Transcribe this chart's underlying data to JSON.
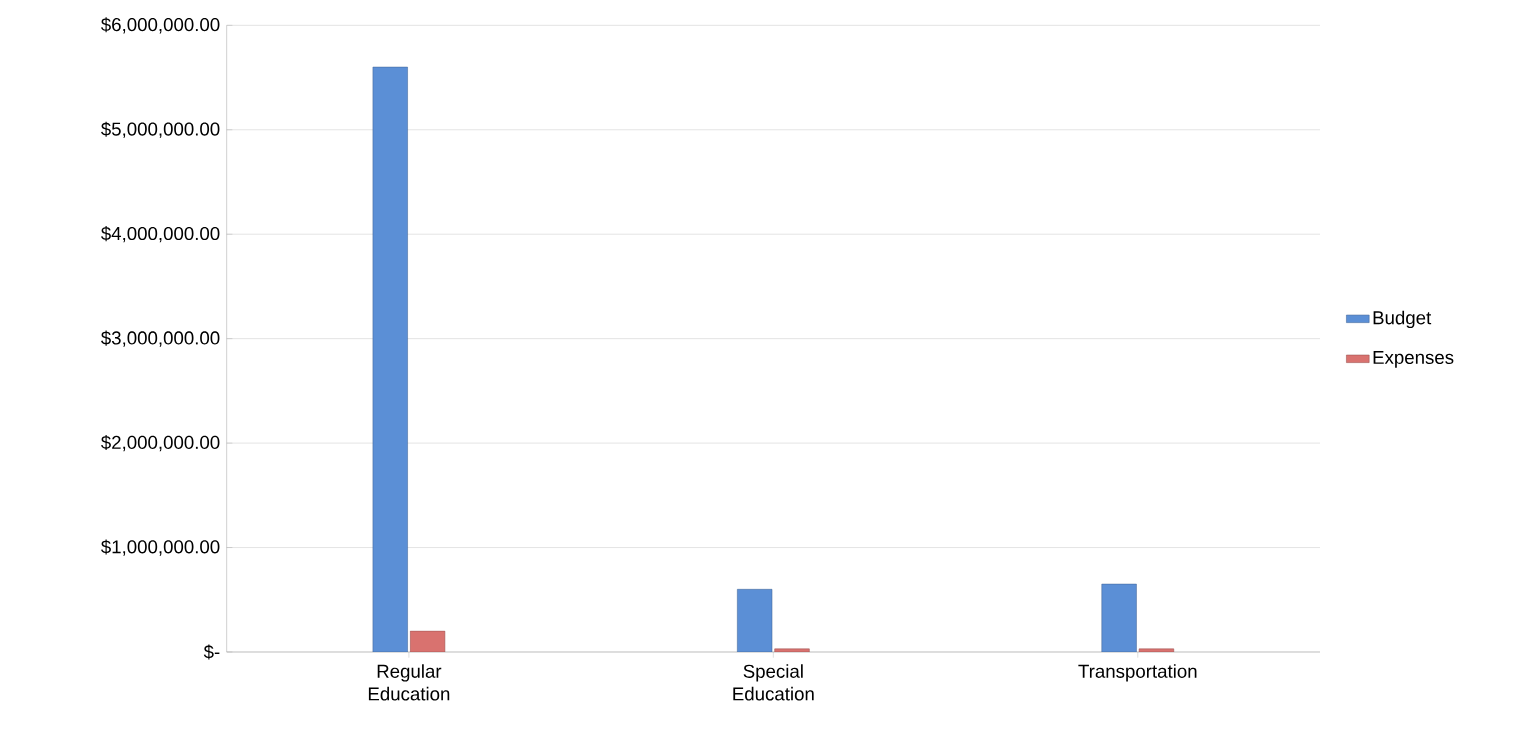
{
  "chart_data": {
    "type": "bar",
    "categories": [
      "Regular Education",
      "Special Education",
      "Transportation"
    ],
    "series": [
      {
        "name": "Budget",
        "color": "#5b8fd6",
        "values": [
          5600000,
          600000,
          650000
        ]
      },
      {
        "name": "Expenses",
        "color": "#d9726f",
        "values": [
          200000,
          30000,
          30000
        ]
      }
    ],
    "ylim": [
      0,
      6000000
    ],
    "yticks": [
      {
        "value": 0,
        "label": "$-"
      },
      {
        "value": 1000000,
        "label": "$1,000,000.00"
      },
      {
        "value": 2000000,
        "label": "$2,000,000.00"
      },
      {
        "value": 3000000,
        "label": "$3,000,000.00"
      },
      {
        "value": 4000000,
        "label": "$4,000,000.00"
      },
      {
        "value": 5000000,
        "label": "$5,000,000.00"
      },
      {
        "value": 6000000,
        "label": "$6,000,000.00"
      }
    ],
    "grid": "y",
    "legend": "right"
  }
}
